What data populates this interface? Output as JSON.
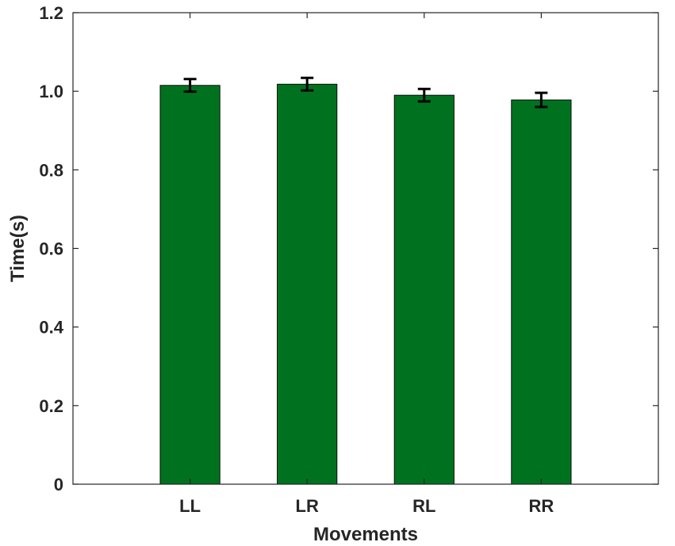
{
  "chart_data": {
    "type": "bar",
    "title": "",
    "xlabel": "Movements",
    "ylabel": "Time(s)",
    "categories": [
      "LL",
      "LR",
      "RL",
      "RR"
    ],
    "values": [
      1.015,
      1.018,
      0.99,
      0.978
    ],
    "errors": [
      0.016,
      0.016,
      0.016,
      0.018
    ],
    "ylim": [
      0,
      1.2
    ],
    "yticks": [
      "0",
      "0.2",
      "0.4",
      "0.6",
      "0.8",
      "1.0",
      "1.2"
    ],
    "grid": false,
    "bar_color": "#00721f",
    "error_bar_color": "#000000",
    "axis_color": "#262626"
  }
}
